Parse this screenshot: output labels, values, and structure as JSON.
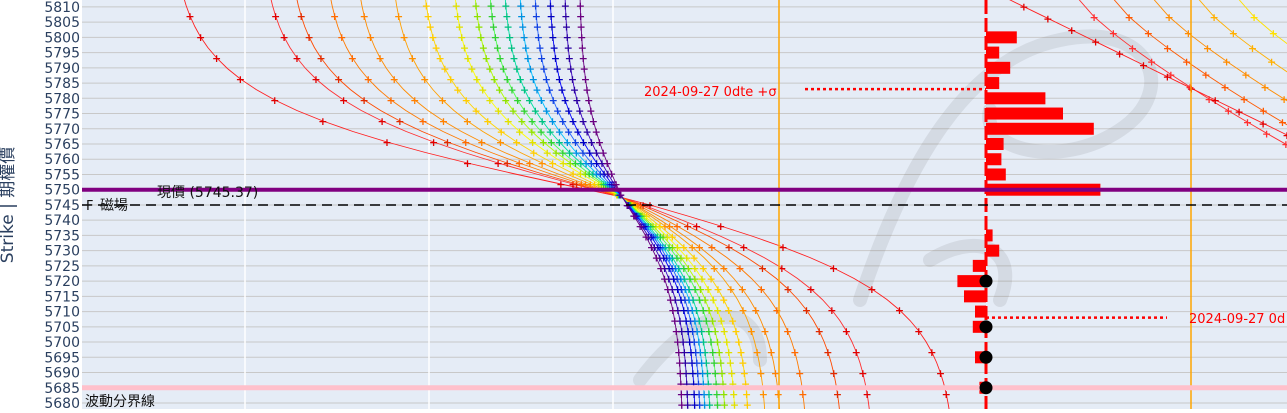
{
  "chart_data": {
    "type": "scatter",
    "ylabel": "Strike | 期權價",
    "xlabel": "",
    "ylim": [
      5679,
      5812
    ],
    "yticks": [
      5680,
      5685,
      5690,
      5695,
      5700,
      5705,
      5710,
      5715,
      5720,
      5725,
      5730,
      5735,
      5740,
      5745,
      5750,
      5755,
      5760,
      5765,
      5770,
      5775,
      5780,
      5785,
      5790,
      5795,
      5800,
      5805,
      5810
    ],
    "grid": true,
    "legend": "none",
    "current_price": 5745.37,
    "magnetic_field": 5745,
    "volatility_boundary": 5685,
    "current_price_line": 5750,
    "annotations": {
      "current_price_label": "現價 (5745.37)",
      "magnetic_label": "磁場",
      "boundary_label": "波動分界線",
      "sigma_upper_label": "2024-09-27 0dte +σ",
      "sigma_lower_label": "2024-09-27 0d"
    },
    "sigma_upper": 5783,
    "sigma_lower": 5708,
    "bars_right": [
      {
        "strike": 5800,
        "value": 1.4
      },
      {
        "strike": 5795,
        "value": 0.6
      },
      {
        "strike": 5790,
        "value": 1.1
      },
      {
        "strike": 5785,
        "value": 0.6
      },
      {
        "strike": 5780,
        "value": 2.7
      },
      {
        "strike": 5775,
        "value": 3.5
      },
      {
        "strike": 5770,
        "value": 4.9
      },
      {
        "strike": 5765,
        "value": 0.8
      },
      {
        "strike": 5760,
        "value": 0.7
      },
      {
        "strike": 5755,
        "value": 0.9
      },
      {
        "strike": 5750,
        "value": 5.2
      },
      {
        "strike": 5735,
        "value": 0.3
      },
      {
        "strike": 5730,
        "value": 0.6
      }
    ],
    "bars_left": [
      {
        "strike": 5725,
        "value": 0.6
      },
      {
        "strike": 5720,
        "value": 1.3
      },
      {
        "strike": 5715,
        "value": 1.0
      },
      {
        "strike": 5710,
        "value": 0.5
      },
      {
        "strike": 5705,
        "value": 0.6
      },
      {
        "strike": 5695,
        "value": 0.5
      },
      {
        "strike": 5685,
        "value": 0.3
      }
    ],
    "black_dots": [
      5720,
      5705,
      5695,
      5685
    ]
  },
  "colors": {
    "purple": "#800080",
    "red": "#ff0000",
    "orange_line": "#ffa500",
    "pink": "#ffc0cb",
    "plot_bg": "#e5ecf6",
    "grid_light": "#ffffff",
    "grid_h": "#c8c8c8",
    "axis_text": "#2a3f5f"
  }
}
